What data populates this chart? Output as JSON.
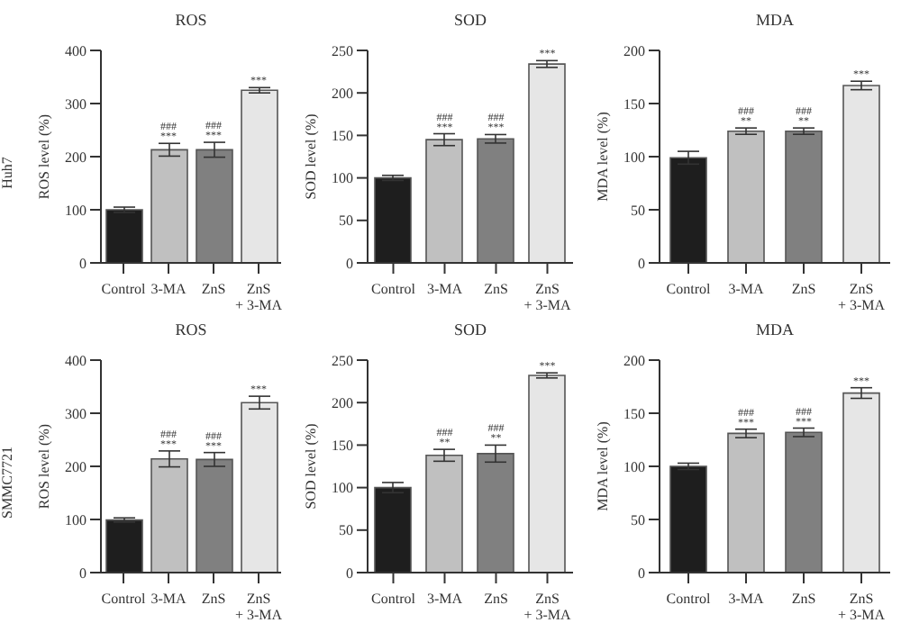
{
  "chart_data": [
    {
      "type": "bar",
      "title": "ROS",
      "ylabel": "ROS level (%)",
      "categories": [
        "Control",
        "3-MA",
        "ZnS",
        "ZnS + 3-MA"
      ],
      "values": [
        100,
        213,
        213,
        325
      ],
      "errors": [
        5,
        12,
        14,
        5
      ],
      "colors": [
        "#1e1e1e",
        "#c0c0c0",
        "#808080",
        "#e6e6e6"
      ],
      "ylim": [
        0,
        400
      ],
      "yticks": [
        0,
        100,
        200,
        300,
        400
      ],
      "annotations": [
        "Huh7",
        {
          "text": "***",
          "x": "3-MA",
          "y": 225
        },
        {
          "text": "###",
          "x": "3-MA",
          "y": 225
        },
        {
          "text": "***",
          "x": "ZnS",
          "y": 227
        },
        {
          "text": "###",
          "x": "ZnS",
          "y": 227
        },
        {
          "text": "***",
          "x": "ZnS + 3-MA",
          "y": 330
        }
      ]
    },
    {
      "type": "bar",
      "title": "SOD",
      "ylabel": "SOD level (%)",
      "categories": [
        "Control",
        "3-MA",
        "ZnS",
        "ZnS + 3-MA"
      ],
      "values": [
        100,
        145,
        146,
        234
      ],
      "errors": [
        3,
        7,
        5,
        4
      ],
      "colors": [
        "#1e1e1e",
        "#c0c0c0",
        "#808080",
        "#e6e6e6"
      ],
      "ylim": [
        0,
        250
      ],
      "yticks": [
        0,
        50,
        100,
        150,
        200,
        250
      ],
      "annotations": [
        {
          "text": "***",
          "x": "3-MA",
          "y": 152
        },
        {
          "text": "###",
          "x": "3-MA",
          "y": 152
        },
        {
          "text": "***",
          "x": "ZnS",
          "y": 151
        },
        {
          "text": "###",
          "x": "ZnS",
          "y": 151
        },
        {
          "text": "***",
          "x": "ZnS + 3-MA",
          "y": 238
        }
      ]
    },
    {
      "type": "bar",
      "title": "MDA",
      "ylabel": "MDA level (%)",
      "categories": [
        "Control",
        "3-MA",
        "ZnS",
        "ZnS + 3-MA"
      ],
      "values": [
        99,
        124,
        124,
        167
      ],
      "errors": [
        6,
        3,
        3,
        4
      ],
      "colors": [
        "#1e1e1e",
        "#c0c0c0",
        "#808080",
        "#e6e6e6"
      ],
      "ylim": [
        0,
        200
      ],
      "yticks": [
        0,
        50,
        100,
        150,
        200
      ],
      "annotations": [
        {
          "text": "**",
          "x": "3-MA",
          "y": 127
        },
        {
          "text": "###",
          "x": "3-MA",
          "y": 127
        },
        {
          "text": "**",
          "x": "ZnS",
          "y": 127
        },
        {
          "text": "###",
          "x": "ZnS",
          "y": 127
        },
        {
          "text": "***",
          "x": "ZnS + 3-MA",
          "y": 171
        }
      ]
    },
    {
      "type": "bar",
      "title": "ROS",
      "ylabel": "ROS level (%)",
      "categories": [
        "Control",
        "3-MA",
        "ZnS",
        "ZnS + 3-MA"
      ],
      "values": [
        99,
        214,
        213,
        320
      ],
      "errors": [
        4,
        15,
        13,
        12
      ],
      "colors": [
        "#1e1e1e",
        "#c0c0c0",
        "#808080",
        "#e6e6e6"
      ],
      "ylim": [
        0,
        400
      ],
      "yticks": [
        0,
        100,
        200,
        300,
        400
      ],
      "annotations": [
        "SMMC7721",
        {
          "text": "***",
          "x": "3-MA",
          "y": 229
        },
        {
          "text": "###",
          "x": "3-MA",
          "y": 229
        },
        {
          "text": "***",
          "x": "ZnS",
          "y": 226
        },
        {
          "text": "###",
          "x": "ZnS",
          "y": 226
        },
        {
          "text": "***",
          "x": "ZnS + 3-MA",
          "y": 332
        }
      ]
    },
    {
      "type": "bar",
      "title": "SOD",
      "ylabel": "SOD level (%)",
      "categories": [
        "Control",
        "3-MA",
        "ZnS",
        "ZnS + 3-MA"
      ],
      "values": [
        100,
        138,
        140,
        232
      ],
      "errors": [
        6,
        7,
        10,
        3
      ],
      "colors": [
        "#1e1e1e",
        "#c0c0c0",
        "#808080",
        "#e6e6e6"
      ],
      "ylim": [
        0,
        250
      ],
      "yticks": [
        0,
        50,
        100,
        150,
        200,
        250
      ],
      "annotations": [
        {
          "text": "**",
          "x": "3-MA",
          "y": 145
        },
        {
          "text": "###",
          "x": "3-MA",
          "y": 145
        },
        {
          "text": "**",
          "x": "ZnS",
          "y": 150
        },
        {
          "text": "###",
          "x": "ZnS",
          "y": 150
        },
        {
          "text": "***",
          "x": "ZnS + 3-MA",
          "y": 235
        }
      ]
    },
    {
      "type": "bar",
      "title": "MDA",
      "ylabel": "MDA level (%)",
      "categories": [
        "Control",
        "3-MA",
        "ZnS",
        "ZnS + 3-MA"
      ],
      "values": [
        100,
        131,
        132,
        169
      ],
      "errors": [
        3,
        4,
        4,
        5
      ],
      "colors": [
        "#1e1e1e",
        "#c0c0c0",
        "#808080",
        "#e6e6e6"
      ],
      "ylim": [
        0,
        200
      ],
      "yticks": [
        0,
        50,
        100,
        150,
        200
      ],
      "annotations": [
        {
          "text": "***",
          "x": "3-MA",
          "y": 135
        },
        {
          "text": "###",
          "x": "3-MA",
          "y": 135
        },
        {
          "text": "***",
          "x": "ZnS",
          "y": 136
        },
        {
          "text": "###",
          "x": "ZnS",
          "y": 136
        },
        {
          "text": "***",
          "x": "ZnS + 3-MA",
          "y": 174
        }
      ]
    }
  ]
}
